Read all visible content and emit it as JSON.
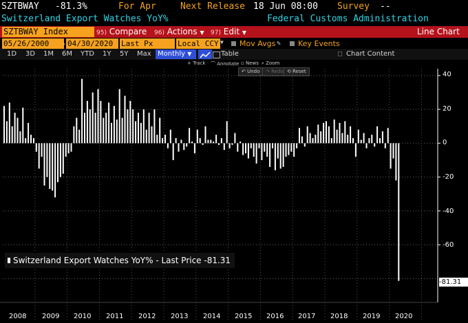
{
  "header": {
    "ticker": "SZTBWAY",
    "last": "-81.3%",
    "period": "For Apr",
    "next_release_label": "Next Release",
    "next_release_value": "18 Jun 08:00",
    "survey_label": "Survey",
    "survey_value": "--",
    "title": "Switzerland Export Watches YoY%",
    "source": "Federal Customs Administration"
  },
  "toolbar": {
    "security": "SZTBWAY Index",
    "compare_num": "95)",
    "compare_label": "Compare",
    "actions_num": "96)",
    "actions_label": "Actions",
    "edit_num": "97)",
    "edit_label": "Edit",
    "chart_type": "Line Chart"
  },
  "controls": {
    "start_date": "05/26/2000",
    "end_date": "04/30/2020",
    "field": "Last Px",
    "currency": "Local CCY",
    "mov_avgs": "Mov Avgs",
    "key_events": "Key Events",
    "ranges": [
      "1D",
      "3D",
      "1M",
      "6M",
      "YTD",
      "1Y",
      "5Y",
      "Max"
    ],
    "frequency": "Monthly",
    "table_label": "Table",
    "chart_content": "Chart Content",
    "tools": {
      "track": "Track",
      "annotate": "Annotate",
      "news": "News",
      "zoom": "Zoom"
    },
    "undo": "Undo",
    "redo": "Redo",
    "reset": "Reset"
  },
  "legend": {
    "text": "Switzerland Export Watches YoY% - Last Price -81.31"
  },
  "last_price_tag": "-81.31",
  "colors": {
    "orange": "#f6a21e",
    "cyan": "#2fd5e6",
    "red": "#b5121b",
    "bar": "#ffffff",
    "background": "#000000"
  },
  "chart_data": {
    "type": "bar",
    "title": "Switzerland Export Watches YoY%",
    "ylim": [
      -92,
      44
    ],
    "y_ticks": [
      "40",
      "20",
      "0",
      "-20",
      "-40",
      "-60"
    ],
    "x_ticks": [
      "2008",
      "2009",
      "2010",
      "2011",
      "2012",
      "2013",
      "2014",
      "2015",
      "2016",
      "2017",
      "2018",
      "2019",
      "2020"
    ],
    "last_value": -81.31,
    "start": "2008-01",
    "frequency": "monthly",
    "values": [
      22,
      13,
      24,
      10,
      18,
      15,
      7,
      21,
      3,
      12,
      5,
      3,
      -5,
      -15,
      -8,
      -25,
      -20,
      -27,
      -28,
      -32,
      -23,
      -20,
      -18,
      -8,
      -6,
      -5,
      10,
      15,
      8,
      38,
      18,
      25,
      20,
      30,
      18,
      32,
      25,
      15,
      18,
      24,
      12,
      22,
      14,
      32,
      15,
      28,
      20,
      25,
      20,
      13,
      18,
      12,
      20,
      8,
      18,
      10,
      20,
      5,
      15,
      3,
      5,
      -3,
      8,
      -10,
      3,
      -5,
      2,
      -4,
      -2,
      9,
      1,
      -6,
      8,
      3,
      -1,
      10,
      2,
      2,
      1,
      5,
      -1,
      3,
      -4,
      13,
      -3,
      -1,
      6,
      -5,
      1,
      -7,
      -6,
      -9,
      -3,
      -8,
      -12,
      -3,
      -10,
      -5,
      -8,
      -14,
      -3,
      -16,
      -9,
      -15,
      -14,
      -8,
      -7,
      -5,
      -8,
      -3,
      9,
      4,
      -2,
      10,
      6,
      3,
      5,
      11,
      7,
      12,
      13,
      10,
      3,
      14,
      8,
      12,
      6,
      13,
      5,
      10,
      3,
      -8,
      8,
      2,
      6,
      -3,
      3,
      5,
      -2,
      10,
      3,
      7,
      -3,
      9,
      -15,
      -9,
      -22,
      -81.31
    ]
  }
}
